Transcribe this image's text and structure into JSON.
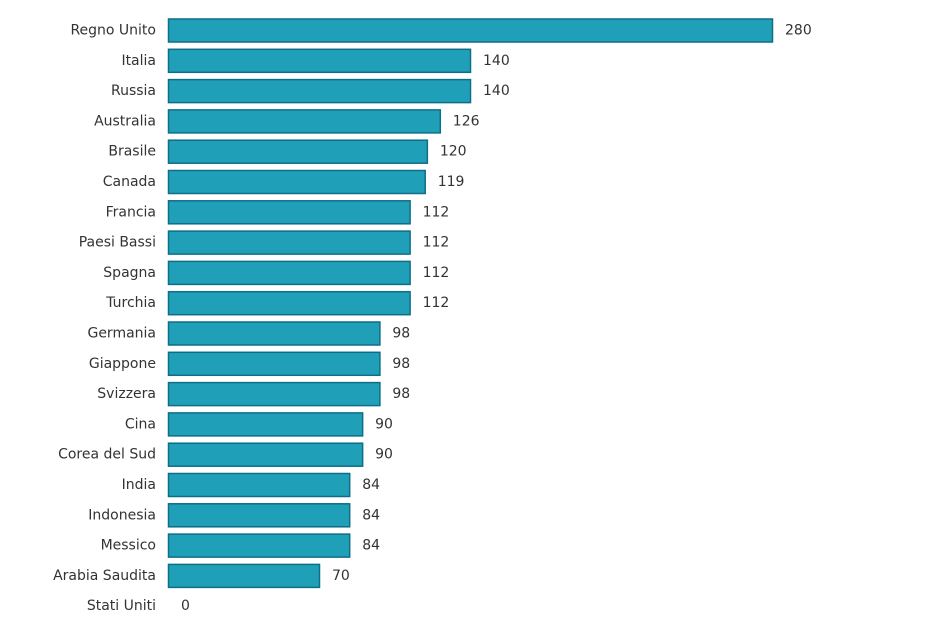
{
  "chart_data": {
    "type": "bar",
    "orientation": "horizontal",
    "title": "",
    "xlabel": "",
    "ylabel": "",
    "xlim": [
      0,
      280
    ],
    "grid": false,
    "legend": "none",
    "bar_color": "#20a0b8",
    "bar_border_color": "#0d6e86",
    "label_color": "#333333",
    "categories": [
      "Regno Unito",
      "Italia",
      "Russia",
      "Australia",
      "Brasile",
      "Canada",
      "Francia",
      "Paesi Bassi",
      "Spagna",
      "Turchia",
      "Germania",
      "Giappone",
      "Svizzera",
      "Cina",
      "Corea del Sud",
      "India",
      "Indonesia",
      "Messico",
      "Arabia Saudita",
      "Stati Uniti"
    ],
    "values": [
      280,
      140,
      140,
      126,
      120,
      119,
      112,
      112,
      112,
      112,
      98,
      98,
      98,
      90,
      90,
      84,
      84,
      84,
      70,
      0
    ],
    "value_labels": [
      "280",
      "140",
      "140",
      "126",
      "120",
      "119",
      "112",
      "112",
      "112",
      "112",
      "98",
      "98",
      "98",
      "90",
      "90",
      "84",
      "84",
      "84",
      "70",
      "0"
    ]
  }
}
